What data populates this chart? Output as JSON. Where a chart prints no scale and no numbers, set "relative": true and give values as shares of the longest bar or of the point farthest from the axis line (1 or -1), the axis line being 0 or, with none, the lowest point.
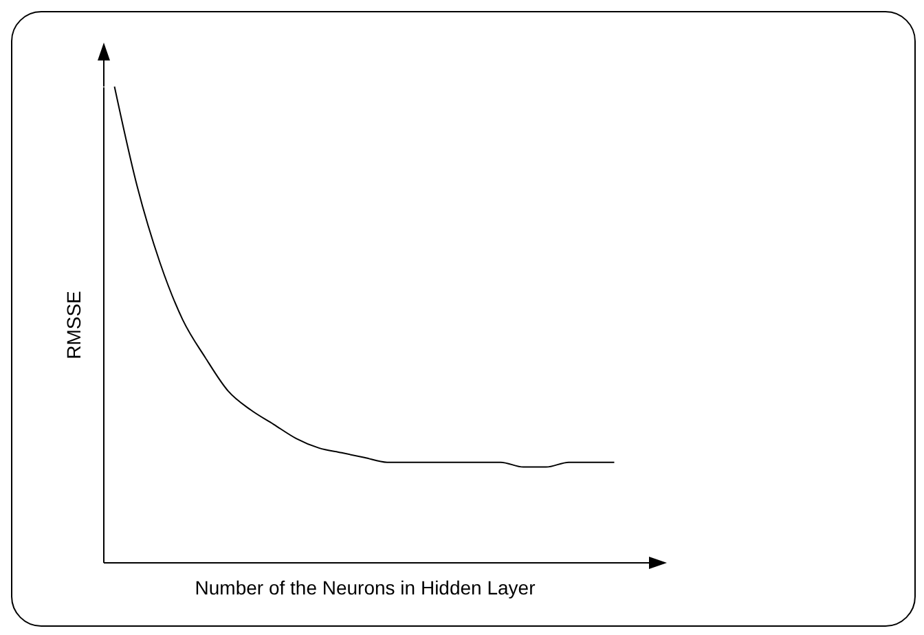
{
  "chart_data": {
    "type": "line",
    "relative": true,
    "xlabel": "Number of the Neurons in Hidden Layer",
    "ylabel": "RMSSE",
    "grid": false,
    "legend": false,
    "tick_labels": false,
    "marker": "none",
    "line_style": "solid",
    "categories": [
      null,
      null,
      null,
      null,
      null,
      null,
      null,
      null,
      null,
      null,
      null,
      null,
      null,
      null,
      null,
      null,
      null,
      null,
      null,
      null,
      null,
      null,
      null
    ],
    "series": [
      {
        "color": "#000000",
        "values": [
          1,
          0.79,
          0.63,
          0.51,
          0.43,
          0.36,
          0.32,
          0.29,
          0.26,
          0.24,
          0.23,
          0.22,
          0.21,
          0.21,
          0.21,
          0.21,
          0.21,
          0.21,
          0.2,
          0.2,
          0.21,
          0.21,
          0.21
        ]
      }
    ]
  }
}
